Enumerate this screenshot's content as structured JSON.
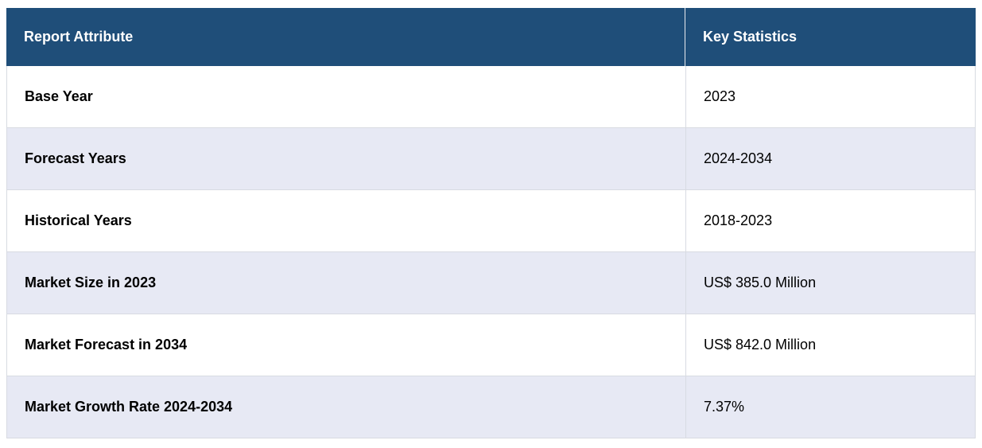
{
  "chart_data": {
    "type": "table",
    "columns": [
      "Report Attribute",
      "Key Statistics"
    ],
    "rows": [
      {
        "attribute": "Base Year",
        "value": "2023"
      },
      {
        "attribute": "Forecast Years",
        "value": "2024-2034"
      },
      {
        "attribute": "Historical Years",
        "value": "2018-2023"
      },
      {
        "attribute": "Market Size in 2023",
        "value": "US$ 385.0 Million"
      },
      {
        "attribute": "Market Forecast in 2034",
        "value": "US$ 842.0 Million"
      },
      {
        "attribute": "Market Growth Rate 2024-2034",
        "value": "7.37%"
      }
    ]
  },
  "colors": {
    "header_bg": "#1f4e79",
    "header_text": "#ffffff",
    "row_bg": "#ffffff",
    "row_alt_bg": "#e7e9f4",
    "border": "#d8dbe2",
    "body_text": "#000000"
  }
}
